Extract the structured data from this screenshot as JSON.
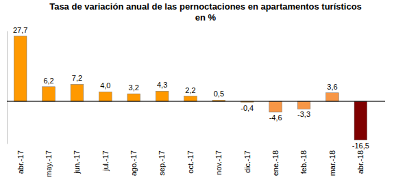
{
  "chart_data": {
    "type": "bar",
    "title": "Tasa de variación anual de las pernoctaciones en apartamentos turísticos en %",
    "categories": [
      "abr.-17",
      "may.-17",
      "jun.-17",
      "jul.-17",
      "ago.-17",
      "sep.-17",
      "oct.-17",
      "nov.-17",
      "dic.-17",
      "ene.-18",
      "feb.-18",
      "mar.-18",
      "abr.-18"
    ],
    "values": [
      27.7,
      6.2,
      7.2,
      4.0,
      3.2,
      4.3,
      2.2,
      0.5,
      -0.4,
      -4.6,
      -3.3,
      3.6,
      -16.5
    ],
    "value_labels": [
      "27,7",
      "6,2",
      "7,2",
      "4,0",
      "3,2",
      "4,3",
      "2,2",
      "0,5",
      "-0,4",
      "-4,6",
      "-3,3",
      "3,6",
      "-16,5"
    ],
    "colors": [
      "#ff9900",
      "#ff9900",
      "#ff9900",
      "#ff9900",
      "#ff9900",
      "#ff9900",
      "#ff9900",
      "#ff9900",
      "#ff9900",
      "#f79646",
      "#f79646",
      "#f79646",
      "#7f0000"
    ],
    "ylim": [
      -18,
      30
    ],
    "data_labels": true,
    "tick_labels": "x"
  }
}
